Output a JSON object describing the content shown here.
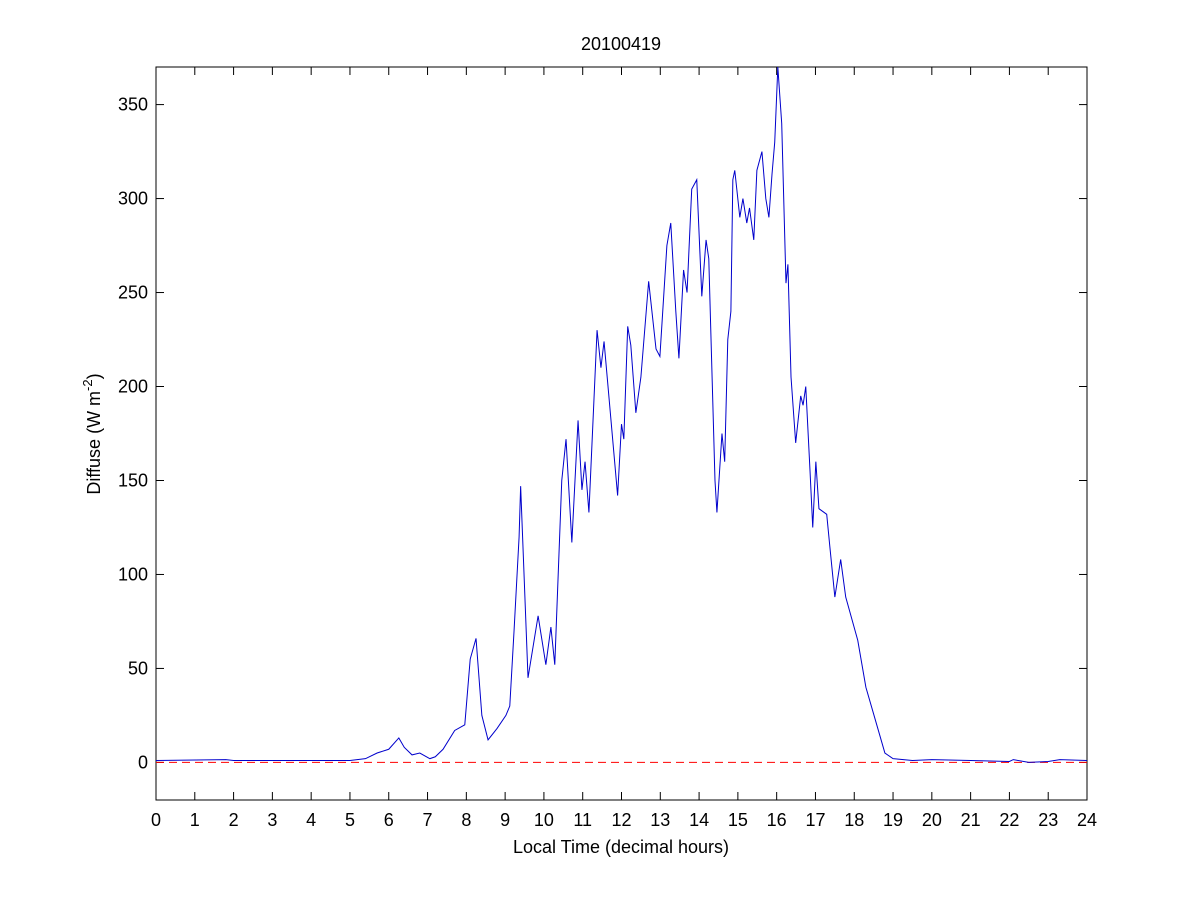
{
  "chart_data": {
    "type": "line",
    "title": "20100419",
    "xlabel": "Local Time (decimal hours)",
    "ylabel": [
      "Diffuse (W m",
      "-2",
      ")"
    ],
    "xlim": [
      0,
      24
    ],
    "ylim": [
      -20,
      370
    ],
    "xticks": [
      0,
      1,
      2,
      3,
      4,
      5,
      6,
      7,
      8,
      9,
      10,
      11,
      12,
      13,
      14,
      15,
      16,
      17,
      18,
      19,
      20,
      21,
      22,
      23,
      24
    ],
    "yticks": [
      0,
      50,
      100,
      150,
      200,
      250,
      300,
      350
    ],
    "reference_line": {
      "y": 0,
      "color": "#ff0000",
      "dashed": true
    },
    "series": [
      {
        "color": "#0000cc",
        "x": [
          0,
          1.8,
          2,
          5,
          5.4,
          5.7,
          6.0,
          6.26,
          6.4,
          6.6,
          6.8,
          7.06,
          7.2,
          7.4,
          7.7,
          7.96,
          8.1,
          8.25,
          8.4,
          8.56,
          8.79,
          9.02,
          9.12,
          9.23,
          9.36,
          9.4,
          9.59,
          9.85,
          10.05,
          10.18,
          10.28,
          10.46,
          10.57,
          10.72,
          10.88,
          10.98,
          11.06,
          11.16,
          11.37,
          11.47,
          11.55,
          11.9,
          12.0,
          12.06,
          12.16,
          12.24,
          12.37,
          12.5,
          12.7,
          12.89,
          12.99,
          13.17,
          13.27,
          13.4,
          13.48,
          13.6,
          13.69,
          13.81,
          13.94,
          14.07,
          14.18,
          14.25,
          14.41,
          14.46,
          14.59,
          14.66,
          14.74,
          14.82,
          14.87,
          14.92,
          15.05,
          15.13,
          15.23,
          15.3,
          15.41,
          15.49,
          15.62,
          15.72,
          15.8,
          15.88,
          15.95,
          16.03,
          16.13,
          16.24,
          16.29,
          16.37,
          16.49,
          16.62,
          16.68,
          16.75,
          16.86,
          16.93,
          17.01,
          17.09,
          17.29,
          17.37,
          17.5,
          17.65,
          17.78,
          18.09,
          18.3,
          18.58,
          18.79,
          19.0,
          19.5,
          20,
          21,
          22,
          22.1,
          22.5,
          23,
          23.3,
          24
        ],
        "values": [
          1,
          1.5,
          1,
          1,
          2,
          5,
          7,
          13,
          8,
          4,
          5,
          2,
          3,
          7,
          17,
          20,
          55,
          66,
          25,
          12,
          18,
          25,
          30,
          70,
          120,
          147,
          45,
          78,
          52,
          72,
          52,
          150,
          172,
          117,
          182,
          145,
          160,
          133,
          230,
          210,
          224,
          142,
          180,
          172,
          232,
          222,
          186,
          205,
          256,
          220,
          216,
          275,
          287,
          240,
          215,
          262,
          250,
          305,
          310,
          248,
          278,
          268,
          150,
          133,
          175,
          160,
          225,
          240,
          310,
          315,
          290,
          300,
          287,
          295,
          278,
          315,
          325,
          300,
          290,
          313,
          330,
          370,
          340,
          255,
          265,
          205,
          170,
          195,
          190,
          200,
          155,
          125,
          160,
          135,
          132,
          115,
          88,
          108,
          88,
          65,
          40,
          20,
          5,
          2,
          1,
          1.5,
          1,
          0.5,
          1.5,
          0,
          0.5,
          1.5,
          1
        ]
      }
    ]
  }
}
